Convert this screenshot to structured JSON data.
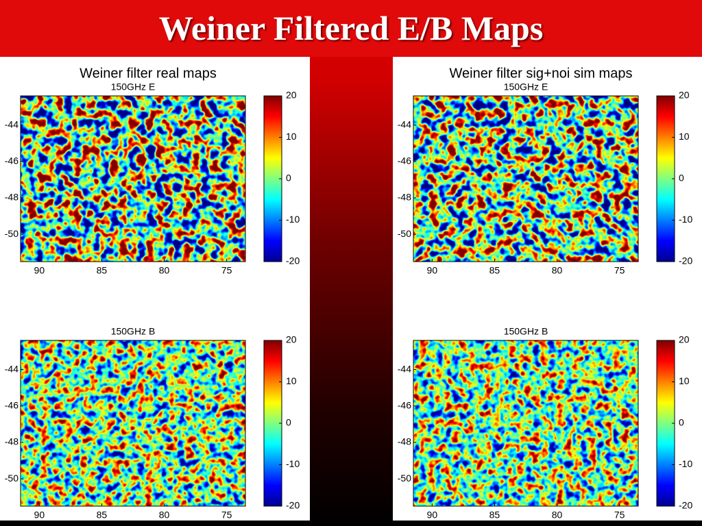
{
  "slide_title": "Weiner Filtered E/B Maps",
  "chart_data": [
    {
      "type": "heatmap",
      "suptitle": "Weiner filter real maps",
      "title": "150GHz E",
      "xlim": [
        91.5,
        73.5
      ],
      "xticks": [
        90,
        85,
        80,
        75
      ],
      "ylim": [
        -51.5,
        -42.4
      ],
      "yticks": [
        -44,
        -46,
        -48,
        -50
      ],
      "clim": [
        -20,
        20
      ],
      "cticks": [
        20,
        10,
        0,
        -10,
        -20
      ]
    },
    {
      "type": "heatmap",
      "suptitle": "Weiner filter sig+noi sim maps",
      "title": "150GHz E",
      "xlim": [
        91.5,
        73.5
      ],
      "xticks": [
        90,
        85,
        80,
        75
      ],
      "ylim": [
        -51.5,
        -42.4
      ],
      "yticks": [
        -44,
        -46,
        -48,
        -50
      ],
      "clim": [
        -20,
        20
      ],
      "cticks": [
        20,
        10,
        0,
        -10,
        -20
      ]
    },
    {
      "type": "heatmap",
      "title": "150GHz B",
      "xlim": [
        91.5,
        73.5
      ],
      "xticks": [
        90,
        85,
        80,
        75
      ],
      "ylim": [
        -51.5,
        -42.4
      ],
      "yticks": [
        -44,
        -46,
        -48,
        -50
      ],
      "clim": [
        -20,
        20
      ],
      "cticks": [
        20,
        10,
        0,
        -10,
        -20
      ]
    },
    {
      "type": "heatmap",
      "title": "150GHz B",
      "xlim": [
        91.5,
        73.5
      ],
      "xticks": [
        90,
        85,
        80,
        75
      ],
      "ylim": [
        -51.5,
        -42.4
      ],
      "yticks": [
        -44,
        -46,
        -48,
        -50
      ],
      "clim": [
        -20,
        20
      ],
      "cticks": [
        20,
        10,
        0,
        -10,
        -20
      ]
    }
  ]
}
